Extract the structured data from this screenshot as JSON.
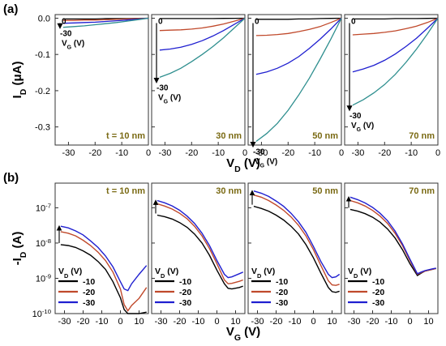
{
  "figure": {
    "panel_a_label": "(a)",
    "panel_b_label": "(b)",
    "text_color": "#000000",
    "thickness_color": "#7a6a14",
    "color_10": "#000000",
    "color_20": "#c0492b",
    "color_30": "#1f1fd0",
    "color_teal": "#2f8f8f"
  },
  "chart_data": [
    {
      "id": "a",
      "type": "line",
      "ylabel": "I_D (μA)",
      "xlabel": "V_D (V)",
      "xlim": [
        -35,
        0
      ],
      "ylim": [
        -0.35,
        0.01
      ],
      "xticks": [
        -30,
        -20,
        -10,
        0
      ],
      "yticks": [
        0.0,
        -0.1,
        -0.2,
        -0.3
      ],
      "ytick_labels": [
        "0.0",
        "-0.1",
        "-0.2",
        "-0.3"
      ],
      "grid": false,
      "panels": [
        {
          "thickness": "t = 10 nm",
          "arrow_top": "0",
          "arrow_bottom": "-30",
          "arrow_unit": "V_G (V)",
          "x": [
            -32,
            -28,
            -24,
            -20,
            -16,
            -12,
            -8,
            -4,
            0
          ],
          "series": [
            {
              "vg": 0,
              "values": [
                -0.002,
                -0.002,
                -0.002,
                -0.002,
                -0.001,
                -0.001,
                -0.001,
                -0.0005,
                0
              ]
            },
            {
              "vg": -10,
              "values": [
                -0.006,
                -0.006,
                -0.005,
                -0.005,
                -0.004,
                -0.003,
                -0.002,
                -0.001,
                0
              ]
            },
            {
              "vg": -20,
              "values": [
                -0.014,
                -0.013,
                -0.012,
                -0.011,
                -0.009,
                -0.007,
                -0.005,
                -0.0025,
                0
              ]
            },
            {
              "vg": -30,
              "values": [
                -0.025,
                -0.023,
                -0.021,
                -0.018,
                -0.015,
                -0.012,
                -0.008,
                -0.004,
                0
              ]
            }
          ]
        },
        {
          "thickness": "30 nm",
          "arrow_top": "0",
          "arrow_bottom": "-30",
          "arrow_unit": "V_G (V)",
          "x": [
            -32,
            -28,
            -24,
            -20,
            -16,
            -12,
            -8,
            -4,
            0
          ],
          "series": [
            {
              "vg": 0,
              "values": [
                -0.001,
                -0.001,
                -0.001,
                -0.001,
                -0.001,
                -0.001,
                -0.0005,
                -0.0003,
                0
              ]
            },
            {
              "vg": -10,
              "values": [
                -0.034,
                -0.033,
                -0.032,
                -0.03,
                -0.027,
                -0.022,
                -0.016,
                -0.008,
                0
              ]
            },
            {
              "vg": -20,
              "values": [
                -0.088,
                -0.085,
                -0.08,
                -0.072,
                -0.062,
                -0.049,
                -0.034,
                -0.017,
                0
              ]
            },
            {
              "vg": -30,
              "values": [
                -0.163,
                -0.152,
                -0.138,
                -0.12,
                -0.1,
                -0.078,
                -0.054,
                -0.027,
                0
              ]
            }
          ]
        },
        {
          "thickness": "50 nm",
          "arrow_top": "0",
          "arrow_bottom": "-30",
          "arrow_unit": "V_G (V)",
          "x": [
            -32,
            -28,
            -24,
            -20,
            -16,
            -12,
            -8,
            -4,
            0
          ],
          "series": [
            {
              "vg": 0,
              "values": [
                -0.003,
                -0.003,
                -0.003,
                -0.003,
                -0.002,
                -0.002,
                -0.001,
                -0.0005,
                0
              ]
            },
            {
              "vg": -10,
              "values": [
                -0.048,
                -0.047,
                -0.045,
                -0.042,
                -0.037,
                -0.031,
                -0.023,
                -0.012,
                0
              ]
            },
            {
              "vg": -20,
              "values": [
                -0.155,
                -0.148,
                -0.138,
                -0.124,
                -0.106,
                -0.083,
                -0.058,
                -0.03,
                0
              ]
            },
            {
              "vg": -30,
              "values": [
                -0.34,
                -0.318,
                -0.29,
                -0.254,
                -0.212,
                -0.165,
                -0.113,
                -0.058,
                0
              ]
            }
          ]
        },
        {
          "thickness": "70 nm",
          "arrow_top": "0",
          "arrow_bottom": "-30",
          "arrow_unit": "V_G (V)",
          "x": [
            -32,
            -28,
            -24,
            -20,
            -16,
            -12,
            -8,
            -4,
            0
          ],
          "series": [
            {
              "vg": 0,
              "values": [
                -0.002,
                -0.002,
                -0.002,
                -0.002,
                -0.001,
                -0.001,
                -0.001,
                -0.0005,
                0
              ]
            },
            {
              "vg": -10,
              "values": [
                -0.046,
                -0.044,
                -0.042,
                -0.039,
                -0.035,
                -0.029,
                -0.022,
                -0.012,
                0
              ]
            },
            {
              "vg": -20,
              "values": [
                -0.148,
                -0.14,
                -0.13,
                -0.116,
                -0.099,
                -0.078,
                -0.055,
                -0.028,
                0
              ]
            },
            {
              "vg": -30,
              "values": [
                -0.24,
                -0.225,
                -0.206,
                -0.183,
                -0.155,
                -0.122,
                -0.085,
                -0.044,
                0
              ]
            }
          ]
        }
      ]
    },
    {
      "id": "b",
      "type": "line",
      "ylabel": "-I_D (A)",
      "xlabel": "V_G (V)",
      "yscale": "log",
      "xlim": [
        -35,
        15
      ],
      "ylim": [
        1e-10,
        5e-07
      ],
      "xticks": [
        -30,
        -20,
        -10,
        0,
        10
      ],
      "yticks": [
        1e-10,
        1e-09,
        1e-08,
        1e-07
      ],
      "ytick_labels": [
        "10-10",
        "10-9",
        "10-8",
        "10-7"
      ],
      "grid": false,
      "legend_title": "V_D (V)",
      "legend_entries": [
        "-10",
        "-20",
        "-30"
      ],
      "legend_placement": "bottom-left",
      "panels": [
        {
          "thickness": "t = 10 nm",
          "x": [
            -32,
            -28,
            -24,
            -20,
            -16,
            -12,
            -8,
            -4,
            0,
            2,
            4,
            6,
            10,
            14
          ],
          "series": [
            {
              "vd": -10,
              "values": [
                9e-09,
                8.5e-09,
                7.5e-09,
                6e-09,
                4.5e-09,
                3e-09,
                1.8e-09,
                8e-10,
                2.8e-10,
                1.3e-10,
                1e-10,
                1e-10,
                1e-10,
                1.1e-10
              ]
            },
            {
              "vd": -20,
              "values": [
                2.1e-08,
                1.9e-08,
                1.6e-08,
                1.2e-08,
                8.5e-09,
                5.5e-09,
                3.2e-09,
                1.5e-09,
                5e-10,
                1.8e-10,
                1.2e-10,
                1.7e-10,
                2.7e-10,
                5.5e-10
              ]
            },
            {
              "vd": -30,
              "values": [
                3e-08,
                2.7e-08,
                2.2e-08,
                1.7e-08,
                1.15e-08,
                7.5e-09,
                4.3e-09,
                2.1e-09,
                8e-10,
                5e-10,
                4.5e-10,
                7e-10,
                1.3e-09,
                2.3e-09
              ]
            }
          ]
        },
        {
          "thickness": "30 nm",
          "x": [
            -32,
            -28,
            -24,
            -20,
            -16,
            -12,
            -8,
            -4,
            0,
            4,
            6,
            8,
            12,
            14
          ],
          "series": [
            {
              "vd": -10,
              "values": [
                6.2e-08,
                5.6e-08,
                4.8e-08,
                3.8e-08,
                2.8e-08,
                1.8e-08,
                1e-08,
                4.5e-09,
                1.7e-09,
                7e-10,
                5.2e-10,
                5e-10,
                5.5e-10,
                6e-10
              ]
            },
            {
              "vd": -20,
              "values": [
                1.3e-07,
                1.12e-07,
                9.2e-08,
                7e-08,
                4.9e-08,
                3e-08,
                1.6e-08,
                7e-09,
                2.6e-09,
                9e-10,
                7e-10,
                7.2e-10,
                8.2e-10,
                9e-10
              ]
            },
            {
              "vd": -30,
              "values": [
                1.6e-07,
                1.38e-07,
                1.13e-07,
                8.5e-08,
                5.8e-08,
                3.6e-08,
                1.9e-08,
                8.5e-09,
                3.2e-09,
                1.3e-09,
                1.05e-09,
                1.1e-09,
                1.35e-09,
                1.5e-09
              ]
            }
          ]
        },
        {
          "thickness": "50 nm",
          "x": [
            -32,
            -28,
            -24,
            -20,
            -16,
            -12,
            -8,
            -4,
            0,
            4,
            8,
            10,
            12,
            14
          ],
          "series": [
            {
              "vd": -10,
              "values": [
                1.1e-07,
                9.6e-08,
                8e-08,
                6.2e-08,
                4.5e-08,
                3e-08,
                1.8e-08,
                9e-09,
                3.8e-09,
                1.4e-09,
                5.5e-10,
                4.2e-10,
                4e-10,
                4.3e-10
              ]
            },
            {
              "vd": -20,
              "values": [
                2.3e-07,
                2e-07,
                1.6e-07,
                1.2e-07,
                8.5e-08,
                5.5e-08,
                3.2e-08,
                1.6e-08,
                6.5e-09,
                2.3e-09,
                8.5e-10,
                6.5e-10,
                6.3e-10,
                6.8e-10
              ]
            },
            {
              "vd": -30,
              "values": [
                3e-07,
                2.6e-07,
                2.1e-07,
                1.55e-07,
                1.1e-07,
                7e-08,
                4e-08,
                2e-08,
                8e-09,
                3e-09,
                1.3e-09,
                1.05e-09,
                1.1e-09,
                1.3e-09
              ]
            }
          ]
        },
        {
          "thickness": "70 nm",
          "x": [
            -32,
            -28,
            -24,
            -20,
            -16,
            -12,
            -8,
            -4,
            0,
            4,
            6,
            8,
            12,
            14
          ],
          "series": [
            {
              "vd": -10,
              "values": [
                9e-08,
                8e-08,
                6.8e-08,
                5.4e-08,
                3.9e-08,
                2.5e-08,
                1.4e-08,
                6.5e-09,
                2.6e-09,
                1.2e-09,
                1.4e-09,
                1.6e-09,
                1.8e-09,
                1.9e-09
              ]
            },
            {
              "vd": -20,
              "values": [
                1.6e-07,
                1.38e-07,
                1.12e-07,
                8.4e-08,
                5.8e-08,
                3.6e-08,
                1.9e-08,
                8.5e-09,
                3.2e-09,
                1.3e-09,
                1.45e-09,
                1.6e-09,
                1.8e-09,
                1.9e-09
              ]
            },
            {
              "vd": -30,
              "values": [
                2e-07,
                1.7e-07,
                1.37e-07,
                1.02e-07,
                7e-08,
                4.3e-08,
                2.2e-08,
                9.5e-09,
                3.5e-09,
                1.35e-09,
                1.5e-09,
                1.65e-09,
                1.85e-09,
                1.95e-09
              ]
            }
          ]
        }
      ]
    }
  ]
}
